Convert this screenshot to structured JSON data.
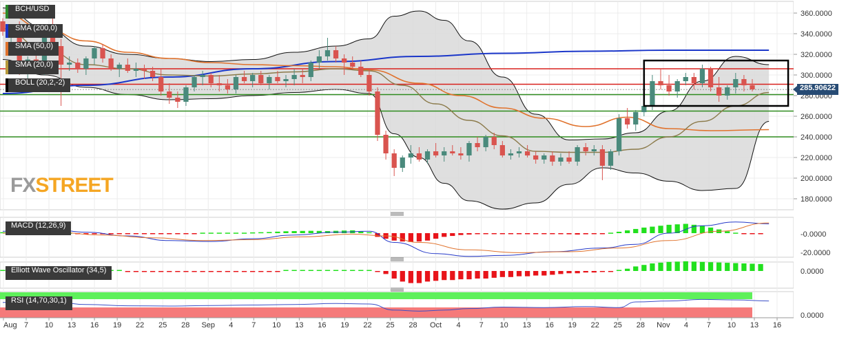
{
  "labels": {
    "pair": "BCH/USD",
    "sma200": "SMA (200,0)",
    "sma50": "SMA (50,0)",
    "sma20": "SMA (20,0)",
    "boll": "BOLL (20,2,-2)",
    "macd": "MACD (12,26,9)",
    "ewo": "Elliott Wave Oscillator (34,5)",
    "rsi": "RSI (14,70,30,1)",
    "last_price": "285.90622",
    "watermark_left": "FX",
    "watermark_right": "STREET"
  },
  "colors": {
    "bull": "#4a8a7c",
    "bear": "#d9544f",
    "sma200": "#1a36c9",
    "sma50": "#e0722c",
    "sma20": "#8b7a4a",
    "band_fill": "#d9d9d9",
    "res_line": "#d8211d",
    "sup_line": "#2e8b1e",
    "hist_pos": "#22e01e",
    "hist_neg": "#e8141a",
    "rsi_upper": "#5ef05a",
    "rsi_lower": "#f57a7a",
    "rsi_line": "#3b4fc7",
    "accent_price_tag": "#274b74"
  },
  "chart_data": {
    "type": "candlestick",
    "title": "BCH/USD",
    "x_ticks": [
      "Aug",
      "7",
      "10",
      "13",
      "16",
      "19",
      "22",
      "25",
      "28",
      "Sep",
      "4",
      "7",
      "10",
      "13",
      "16",
      "19",
      "22",
      "25",
      "28",
      "Oct",
      "4",
      "7",
      "10",
      "13",
      "16",
      "19",
      "22",
      "25",
      "28",
      "Nov",
      "4",
      "7",
      "10",
      "13",
      "16"
    ],
    "y_ticks": [
      "360.0000",
      "340.0000",
      "320.0000",
      "300.0000",
      "280.0000",
      "260.0000",
      "240.0000",
      "220.0000",
      "200.0000",
      "180.0000"
    ],
    "ylim": [
      166,
      370
    ],
    "candles": [
      [
        352,
        355,
        338,
        342
      ],
      [
        342,
        348,
        332,
        345
      ],
      [
        345,
        352,
        300,
        305
      ],
      [
        305,
        318,
        296,
        315
      ],
      [
        315,
        325,
        306,
        310
      ],
      [
        310,
        345,
        300,
        340
      ],
      [
        340,
        358,
        320,
        328
      ],
      [
        328,
        335,
        270,
        310
      ],
      [
        310,
        318,
        304,
        312
      ],
      [
        312,
        316,
        302,
        306
      ],
      [
        306,
        318,
        300,
        316
      ],
      [
        316,
        328,
        310,
        326
      ],
      [
        326,
        330,
        312,
        316
      ],
      [
        316,
        320,
        304,
        306
      ],
      [
        306,
        312,
        298,
        310
      ],
      [
        310,
        316,
        302,
        304
      ],
      [
        304,
        312,
        298,
        306
      ],
      [
        306,
        310,
        296,
        304
      ],
      [
        304,
        308,
        294,
        298
      ],
      [
        298,
        306,
        280,
        284
      ],
      [
        284,
        292,
        272,
        278
      ],
      [
        278,
        284,
        268,
        274
      ],
      [
        274,
        290,
        270,
        288
      ],
      [
        288,
        300,
        284,
        298
      ],
      [
        298,
        304,
        290,
        300
      ],
      [
        300,
        302,
        288,
        292
      ],
      [
        292,
        300,
        284,
        290
      ],
      [
        290,
        296,
        282,
        286
      ],
      [
        286,
        300,
        282,
        298
      ],
      [
        298,
        304,
        292,
        294
      ],
      [
        294,
        302,
        288,
        300
      ],
      [
        300,
        304,
        290,
        292
      ],
      [
        292,
        300,
        286,
        298
      ],
      [
        298,
        304,
        292,
        294
      ],
      [
        294,
        300,
        288,
        296
      ],
      [
        296,
        306,
        290,
        300
      ],
      [
        300,
        306,
        292,
        298
      ],
      [
        298,
        314,
        294,
        312
      ],
      [
        312,
        324,
        306,
        318
      ],
      [
        318,
        336,
        314,
        324
      ],
      [
        324,
        328,
        312,
        316
      ],
      [
        316,
        320,
        300,
        312
      ],
      [
        312,
        318,
        306,
        308
      ],
      [
        308,
        314,
        298,
        300
      ],
      [
        300,
        306,
        280,
        284
      ],
      [
        284,
        288,
        236,
        242
      ],
      [
        242,
        246,
        218,
        224
      ],
      [
        224,
        228,
        202,
        210
      ],
      [
        210,
        222,
        206,
        220
      ],
      [
        220,
        232,
        214,
        224
      ],
      [
        224,
        230,
        216,
        218
      ],
      [
        218,
        228,
        214,
        226
      ],
      [
        226,
        234,
        220,
        222
      ],
      [
        222,
        230,
        216,
        226
      ],
      [
        226,
        232,
        222,
        224
      ],
      [
        224,
        230,
        218,
        222
      ],
      [
        222,
        236,
        216,
        234
      ],
      [
        234,
        240,
        226,
        230
      ],
      [
        230,
        242,
        226,
        240
      ],
      [
        240,
        244,
        228,
        232
      ],
      [
        232,
        236,
        220,
        222
      ],
      [
        222,
        228,
        218,
        224
      ],
      [
        224,
        230,
        220,
        226
      ],
      [
        226,
        232,
        220,
        222
      ],
      [
        222,
        226,
        214,
        218
      ],
      [
        218,
        224,
        214,
        222
      ],
      [
        222,
        226,
        212,
        216
      ],
      [
        216,
        224,
        212,
        220
      ],
      [
        220,
        226,
        214,
        216
      ],
      [
        216,
        232,
        212,
        230
      ],
      [
        230,
        234,
        222,
        226
      ],
      [
        226,
        232,
        222,
        228
      ],
      [
        228,
        232,
        198,
        212
      ],
      [
        212,
        228,
        208,
        226
      ],
      [
        226,
        262,
        222,
        258
      ],
      [
        258,
        268,
        248,
        252
      ],
      [
        252,
        266,
        246,
        264
      ],
      [
        264,
        272,
        260,
        270
      ],
      [
        270,
        300,
        266,
        294
      ],
      [
        294,
        306,
        286,
        290
      ],
      [
        290,
        300,
        280,
        284
      ],
      [
        284,
        296,
        278,
        294
      ],
      [
        294,
        302,
        290,
        298
      ],
      [
        298,
        302,
        286,
        292
      ],
      [
        292,
        310,
        288,
        306
      ],
      [
        306,
        308,
        284,
        288
      ],
      [
        288,
        298,
        274,
        280
      ],
      [
        280,
        290,
        276,
        288
      ],
      [
        288,
        302,
        282,
        296
      ],
      [
        296,
        300,
        284,
        290
      ],
      [
        290,
        296,
        284,
        286
      ]
    ],
    "sma200": [
      [
        0,
        282
      ],
      [
        10,
        290
      ],
      [
        20,
        298
      ],
      [
        30,
        306
      ],
      [
        40,
        313
      ],
      [
        50,
        318
      ],
      [
        60,
        321
      ],
      [
        70,
        323
      ],
      [
        80,
        324
      ],
      [
        92,
        324
      ]
    ],
    "sma50": [
      [
        0,
        360
      ],
      [
        5,
        345
      ],
      [
        10,
        333
      ],
      [
        15,
        322
      ],
      [
        20,
        316
      ],
      [
        25,
        312
      ],
      [
        30,
        310
      ],
      [
        35,
        309
      ],
      [
        40,
        308
      ],
      [
        44,
        305
      ],
      [
        50,
        292
      ],
      [
        55,
        280
      ],
      [
        60,
        268
      ],
      [
        65,
        258
      ],
      [
        70,
        250
      ],
      [
        75,
        259
      ],
      [
        80,
        248
      ],
      [
        85,
        246
      ],
      [
        92,
        247
      ]
    ],
    "sma20": [
      [
        0,
        345
      ],
      [
        5,
        325
      ],
      [
        10,
        310
      ],
      [
        15,
        306
      ],
      [
        20,
        300
      ],
      [
        25,
        299
      ],
      [
        30,
        301
      ],
      [
        35,
        303
      ],
      [
        40,
        306
      ],
      [
        44,
        304
      ],
      [
        48,
        290
      ],
      [
        52,
        272
      ],
      [
        56,
        256
      ],
      [
        60,
        241
      ],
      [
        64,
        226
      ],
      [
        68,
        225
      ],
      [
        72,
        225
      ],
      [
        76,
        228
      ],
      [
        80,
        240
      ],
      [
        84,
        255
      ],
      [
        88,
        270
      ],
      [
        92,
        283
      ]
    ],
    "boll_upper": [
      [
        0,
        365
      ],
      [
        5,
        346
      ],
      [
        10,
        328
      ],
      [
        15,
        320
      ],
      [
        20,
        316
      ],
      [
        25,
        313
      ],
      [
        30,
        315
      ],
      [
        35,
        322
      ],
      [
        40,
        328
      ],
      [
        44,
        335
      ],
      [
        47,
        357
      ],
      [
        50,
        362
      ],
      [
        53,
        353
      ],
      [
        56,
        333
      ],
      [
        60,
        298
      ],
      [
        64,
        262
      ],
      [
        68,
        237
      ],
      [
        72,
        238
      ],
      [
        76,
        244
      ],
      [
        80,
        265
      ],
      [
        84,
        294
      ],
      [
        88,
        318
      ],
      [
        92,
        310
      ]
    ],
    "boll_lower": [
      [
        0,
        315
      ],
      [
        5,
        300
      ],
      [
        10,
        288
      ],
      [
        15,
        281
      ],
      [
        20,
        276
      ],
      [
        25,
        277
      ],
      [
        30,
        280
      ],
      [
        35,
        283
      ],
      [
        40,
        286
      ],
      [
        44,
        282
      ],
      [
        47,
        243
      ],
      [
        50,
        220
      ],
      [
        53,
        195
      ],
      [
        56,
        178
      ],
      [
        60,
        170
      ],
      [
        64,
        176
      ],
      [
        68,
        194
      ],
      [
        72,
        210
      ],
      [
        76,
        205
      ],
      [
        80,
        197
      ],
      [
        84,
        188
      ],
      [
        88,
        190
      ],
      [
        92,
        255
      ]
    ],
    "resistance_levels": [
      306,
      291
    ],
    "support_levels": [
      281,
      265,
      240
    ],
    "last_price": 285.90622,
    "macd": {
      "name": "MACD (12,26,9)",
      "y_ticks": [
        "-0.0000",
        "-20.0000"
      ],
      "histogram": [
        1,
        1,
        1,
        1,
        0.5,
        0.5,
        0.5,
        0.5,
        0.5,
        -0.5,
        -0.5,
        -0.8,
        -1,
        -1,
        -1,
        -1,
        -1,
        -1,
        -1,
        -1,
        -1,
        -1,
        -1,
        -0.8,
        0.5,
        0.5,
        0.5,
        0.5,
        0.5,
        0.5,
        0.8,
        1,
        1.2,
        1.6,
        2,
        2.2,
        2.4,
        2.5,
        2.4,
        2.2,
        2.5,
        2.8,
        3,
        2.2,
        1,
        -4,
        -6,
        -8,
        -9,
        -9.5,
        -9,
        -8,
        -6,
        -4,
        -3,
        -2,
        -1.5,
        -1,
        -1,
        -1,
        -1,
        -1,
        -1,
        -1,
        -1,
        -1,
        -1,
        -1,
        -1.2,
        -1.5,
        -1.2,
        -1,
        -0.8,
        0.5,
        1.5,
        3,
        4.5,
        6,
        7,
        8,
        9,
        9.5,
        10,
        9,
        8,
        6,
        4,
        2,
        0.5,
        -0.5,
        -1,
        -1
      ],
      "macd_line": [
        [
          0,
          2
        ],
        [
          6,
          4
        ],
        [
          10,
          1
        ],
        [
          15,
          -3
        ],
        [
          20,
          -8
        ],
        [
          25,
          -9
        ],
        [
          30,
          -6
        ],
        [
          35,
          -2
        ],
        [
          40,
          1
        ],
        [
          44,
          2
        ],
        [
          47,
          -10
        ],
        [
          52,
          -22
        ],
        [
          56,
          -25
        ],
        [
          60,
          -24
        ],
        [
          66,
          -20
        ],
        [
          72,
          -16
        ],
        [
          76,
          -12
        ],
        [
          80,
          0
        ],
        [
          84,
          8
        ],
        [
          88,
          12
        ],
        [
          92,
          10
        ]
      ],
      "signal_line": [
        [
          0,
          0
        ],
        [
          6,
          1
        ],
        [
          12,
          -2
        ],
        [
          18,
          -5
        ],
        [
          24,
          -8
        ],
        [
          30,
          -7
        ],
        [
          36,
          -4
        ],
        [
          42,
          -1
        ],
        [
          46,
          -3
        ],
        [
          50,
          -10
        ],
        [
          56,
          -18
        ],
        [
          62,
          -21
        ],
        [
          68,
          -20
        ],
        [
          74,
          -16
        ],
        [
          80,
          -8
        ],
        [
          86,
          2
        ],
        [
          92,
          11
        ]
      ]
    },
    "ewo": {
      "name": "Elliott Wave Oscillator (34,5)",
      "y_ticks": [
        "0.0000"
      ],
      "histogram": [
        0,
        0,
        0,
        0,
        0,
        0,
        0,
        0,
        0,
        0,
        0,
        0,
        0,
        0,
        0,
        -0.3,
        -0.3,
        -0.3,
        -0.3,
        -0.3,
        -0.3,
        -0.3,
        -0.3,
        -0.3,
        -0.3,
        -0.3,
        -0.3,
        -0.3,
        -0.2,
        -0.2,
        -0.2,
        -0.2,
        -0.2,
        -0.2,
        0.2,
        0.2,
        0.2,
        0.2,
        0.2,
        0.2,
        0.2,
        0.2,
        0.3,
        0.3,
        0.3,
        -0.5,
        -2,
        -5,
        -7,
        -8,
        -8,
        -7,
        -6.5,
        -6,
        -6,
        -5.5,
        -5.5,
        -5,
        -5,
        -4.5,
        -4,
        -4,
        -3.5,
        -3.5,
        -3,
        -3,
        -2.5,
        -2,
        -1.5,
        -1.5,
        -1,
        -1,
        -0.5,
        -0.5,
        0.5,
        1.5,
        3,
        4,
        5,
        5.5,
        6,
        6.2,
        6.4,
        6.2,
        6,
        5.8,
        5.6,
        5.4,
        5.2,
        5,
        4.8,
        4.6
      ]
    },
    "rsi": {
      "name": "RSI (14,70,30,1)",
      "y_ticks": [
        "0.0000"
      ],
      "values": [
        [
          0,
          60
        ],
        [
          6,
          62
        ],
        [
          10,
          52
        ],
        [
          15,
          47
        ],
        [
          20,
          46
        ],
        [
          25,
          48
        ],
        [
          30,
          50
        ],
        [
          35,
          52
        ],
        [
          40,
          56
        ],
        [
          44,
          54
        ],
        [
          47,
          30
        ],
        [
          50,
          26
        ],
        [
          53,
          30
        ],
        [
          56,
          36
        ],
        [
          60,
          42
        ],
        [
          65,
          40
        ],
        [
          70,
          44
        ],
        [
          74,
          40
        ],
        [
          76,
          62
        ],
        [
          80,
          66
        ],
        [
          84,
          72
        ],
        [
          88,
          70
        ],
        [
          92,
          66
        ]
      ]
    }
  }
}
